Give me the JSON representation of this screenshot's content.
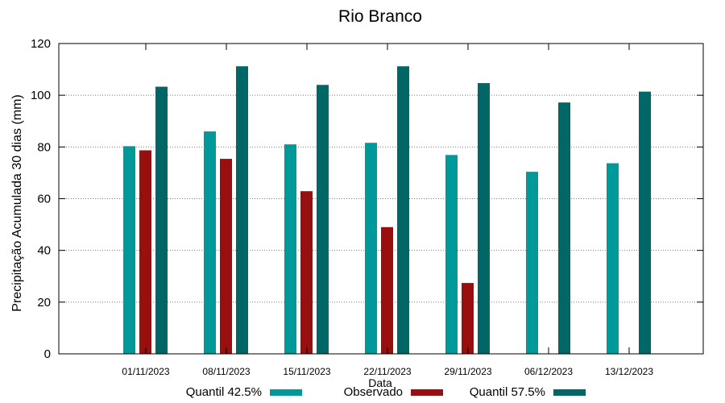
{
  "chart_data": {
    "type": "bar",
    "title": "Rio Branco",
    "xlabel": "Data",
    "ylabel": "Precipitação Acumulada 30 dias (mm)",
    "ylim": [
      0,
      120
    ],
    "yticks": [
      0,
      20,
      40,
      60,
      80,
      100,
      120
    ],
    "grid": true,
    "legend_position": "bottom",
    "categories": [
      "01/11/2023",
      "08/11/2023",
      "15/11/2023",
      "22/11/2023",
      "29/11/2023",
      "06/12/2023",
      "13/12/2023"
    ],
    "series": [
      {
        "name": "Quantil 42.5%",
        "color": "#009999",
        "values": [
          80.3,
          86.0,
          81.0,
          81.6,
          76.9,
          70.4,
          73.7
        ]
      },
      {
        "name": "Observado",
        "color": "#990f0f",
        "values": [
          78.7,
          75.4,
          62.9,
          49.0,
          27.4,
          null,
          null
        ]
      },
      {
        "name": "Quantil 57.5%",
        "color": "#006666",
        "values": [
          103.3,
          111.2,
          104.0,
          111.2,
          104.7,
          97.2,
          101.4
        ]
      }
    ]
  }
}
